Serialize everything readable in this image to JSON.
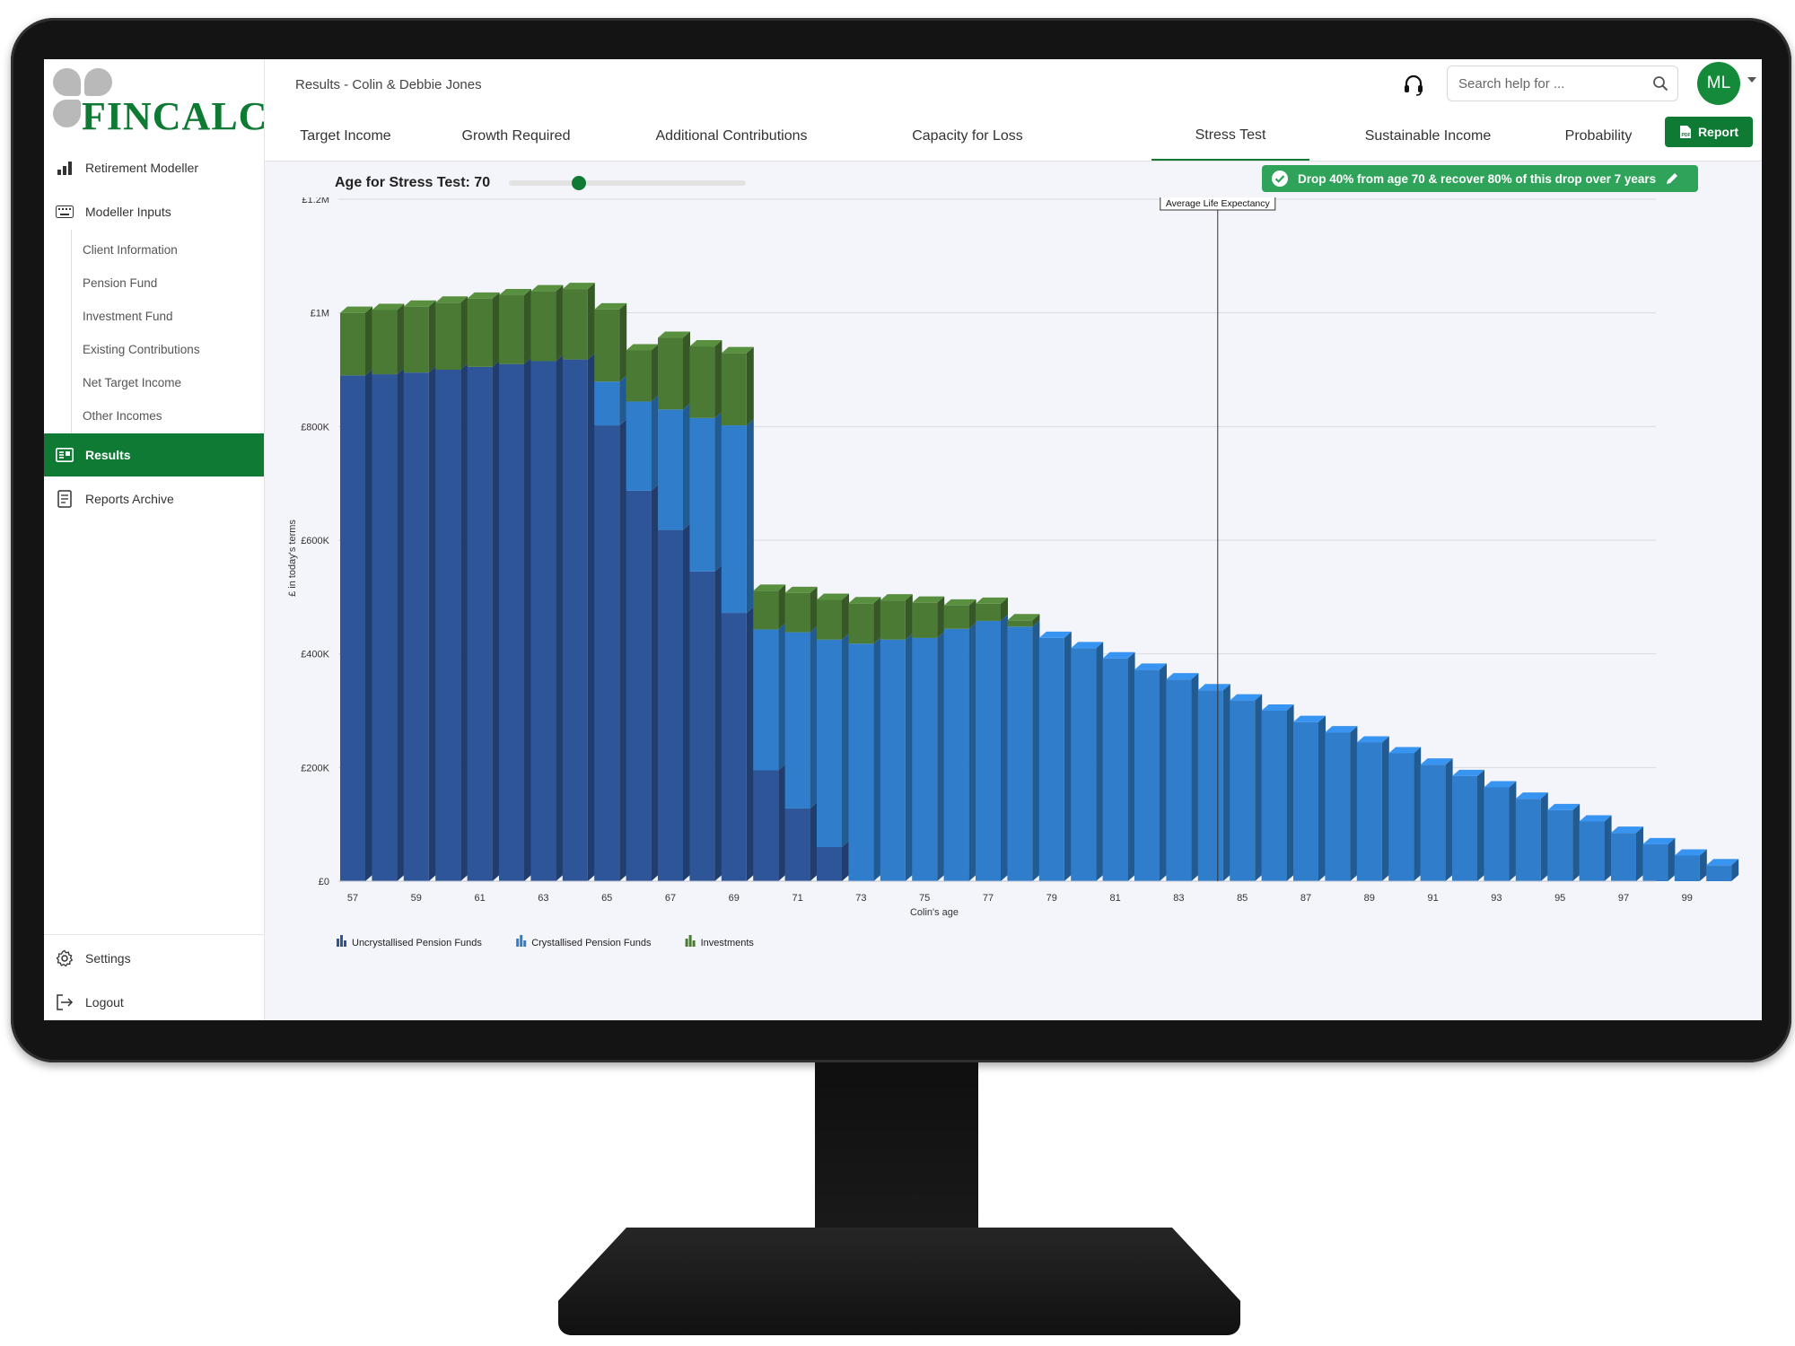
{
  "app": {
    "logo_text": "FINCALC",
    "page_title": "Results - Colin & Debbie Jones"
  },
  "sidebar": {
    "items": [
      {
        "label": "Retirement Modeller",
        "icon": "bar-chart-icon"
      },
      {
        "label": "Modeller Inputs",
        "icon": "keyboard-icon"
      }
    ],
    "sub_items": [
      "Client Information",
      "Pension Fund",
      "Investment Fund",
      "Existing Contributions",
      "Net Target Income",
      "Other Incomes"
    ],
    "results_label": "Results",
    "reports_archive_label": "Reports Archive",
    "settings_label": "Settings",
    "logout_label": "Logout"
  },
  "header": {
    "search_placeholder": "Search help for ...",
    "avatar_initials": "ML"
  },
  "tabs": [
    {
      "label": "Target Income",
      "active": false
    },
    {
      "label": "Growth Required",
      "active": false
    },
    {
      "label": "Additional Contributions",
      "active": false
    },
    {
      "label": "Capacity for Loss",
      "active": false
    },
    {
      "label": "Stress Test",
      "active": true
    },
    {
      "label": "Sustainable Income",
      "active": false
    },
    {
      "label": "Probability",
      "active": false
    }
  ],
  "report_button": "Report",
  "stress": {
    "age_label": "Age for Stress Test: 70",
    "slider_value": 70,
    "badge_text": "Drop 40% from age 70 & recover 80% of this drop over 7 years"
  },
  "colors": {
    "brand_green": "#0e7a34",
    "uncrystallised": "#2e5597",
    "crystallised": "#2f7dcb",
    "investments": "#4b7a35"
  },
  "chart_data": {
    "type": "bar",
    "stacked": true,
    "style": "3d-columns",
    "ylabel": "£ in today's terms",
    "xlabel": "Colin's age",
    "ylim": [
      0,
      1200000
    ],
    "y_ticks": [
      "£0",
      "£200K",
      "£400K",
      "£600K",
      "£800K",
      "£1M",
      "£1.2M"
    ],
    "x_ticks": [
      "57",
      "59",
      "61",
      "63",
      "65",
      "67",
      "69",
      "71",
      "73",
      "75",
      "77",
      "79",
      "81",
      "83",
      "85",
      "87",
      "89",
      "91",
      "93",
      "95",
      "97",
      "99"
    ],
    "annotation": {
      "label": "Average Life Expectancy",
      "x": 84
    },
    "legend_position": "bottom-left",
    "categories": [
      57,
      58,
      59,
      60,
      61,
      62,
      63,
      64,
      65,
      66,
      67,
      68,
      69,
      70,
      71,
      72,
      73,
      74,
      75,
      76,
      77,
      78,
      79,
      80,
      81,
      82,
      83,
      84,
      85,
      86,
      87,
      88,
      89,
      90,
      91,
      92,
      93,
      94,
      95,
      96,
      97,
      98,
      99,
      100
    ],
    "series": [
      {
        "name": "Uncrystallised Pension Funds",
        "color": "#2e5597",
        "values": [
          890000,
          892000,
          895000,
          900000,
          905000,
          910000,
          915000,
          918000,
          802000,
          687000,
          618000,
          545000,
          472000,
          195000,
          128000,
          60000,
          0,
          0,
          0,
          0,
          0,
          0,
          0,
          0,
          0,
          0,
          0,
          0,
          0,
          0,
          0,
          0,
          0,
          0,
          0,
          0,
          0,
          0,
          0,
          0,
          0,
          0,
          0,
          0
        ]
      },
      {
        "name": "Crystallised Pension Funds",
        "color": "#2f7dcb",
        "values": [
          0,
          0,
          0,
          0,
          0,
          0,
          0,
          0,
          77000,
          157000,
          212000,
          270000,
          330000,
          248000,
          310000,
          365000,
          418000,
          425000,
          428000,
          444000,
          458000,
          448000,
          428000,
          410000,
          392000,
          372000,
          355000,
          336000,
          318000,
          300000,
          280000,
          262000,
          244000,
          225000,
          205000,
          185000,
          165000,
          145000,
          125000,
          105000,
          85000,
          65000,
          45000,
          28000
        ]
      },
      {
        "name": "Investments",
        "color": "#4b7a35",
        "values": [
          110000,
          113000,
          116000,
          118000,
          120000,
          121000,
          123000,
          124000,
          127000,
          90000,
          126000,
          126000,
          127000,
          68000,
          69000,
          70000,
          71000,
          69000,
          62000,
          41000,
          30000,
          11000,
          0,
          0,
          0,
          0,
          0,
          0,
          0,
          0,
          0,
          0,
          0,
          0,
          0,
          0,
          0,
          0,
          0,
          0,
          0,
          0,
          0,
          0
        ]
      }
    ]
  }
}
